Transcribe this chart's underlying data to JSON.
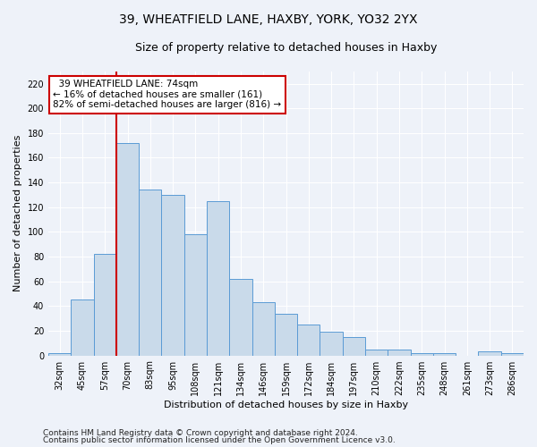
{
  "title": "39, WHEATFIELD LANE, HAXBY, YORK, YO32 2YX",
  "subtitle": "Size of property relative to detached houses in Haxby",
  "xlabel": "Distribution of detached houses by size in Haxby",
  "ylabel": "Number of detached properties",
  "categories": [
    "32sqm",
    "45sqm",
    "57sqm",
    "70sqm",
    "83sqm",
    "95sqm",
    "108sqm",
    "121sqm",
    "134sqm",
    "146sqm",
    "159sqm",
    "172sqm",
    "184sqm",
    "197sqm",
    "210sqm",
    "222sqm",
    "235sqm",
    "248sqm",
    "261sqm",
    "273sqm",
    "286sqm"
  ],
  "values": [
    2,
    45,
    82,
    172,
    134,
    130,
    98,
    125,
    62,
    43,
    34,
    25,
    19,
    15,
    5,
    5,
    2,
    2,
    0,
    3,
    2
  ],
  "bar_color": "#c9daea",
  "bar_edge_color": "#5b9bd5",
  "vline_index": 3,
  "vline_color": "#cc0000",
  "annotation_line1": "  39 WHEATFIELD LANE: 74sqm",
  "annotation_line2": "← 16% of detached houses are smaller (161)",
  "annotation_line3": "82% of semi-detached houses are larger (816) →",
  "annotation_box_color": "#ffffff",
  "annotation_box_edge": "#cc0000",
  "ylim": [
    0,
    230
  ],
  "yticks": [
    0,
    20,
    40,
    60,
    80,
    100,
    120,
    140,
    160,
    180,
    200,
    220
  ],
  "background_color": "#eef2f9",
  "grid_color": "#ffffff",
  "title_fontsize": 10,
  "subtitle_fontsize": 9,
  "axis_label_fontsize": 8,
  "tick_fontsize": 7,
  "annotation_fontsize": 7.5,
  "footer_fontsize": 6.5,
  "footer1": "Contains HM Land Registry data © Crown copyright and database right 2024.",
  "footer2": "Contains public sector information licensed under the Open Government Licence v3.0."
}
